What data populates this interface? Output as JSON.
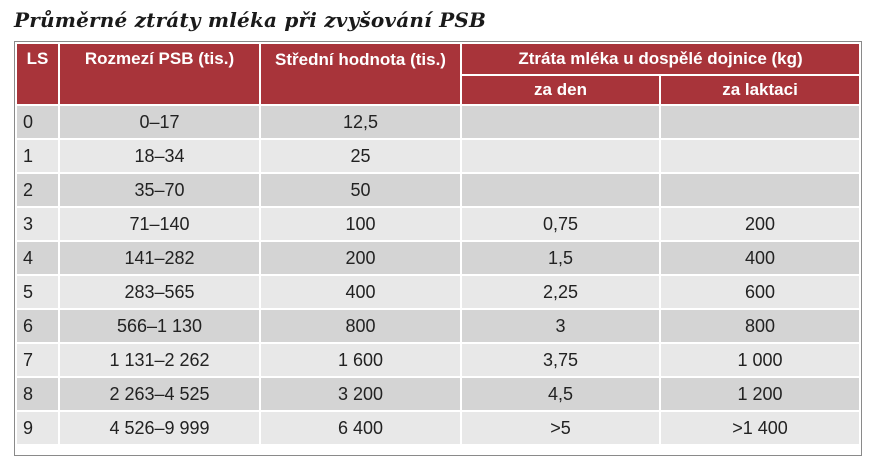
{
  "title": "Průměrné ztráty mléka při zvyšování PSB",
  "headers": {
    "ls": "LS",
    "range": "Rozmezí PSB (tis.)",
    "mean": "Střední hodnota (tis.)",
    "loss": "Ztráta mléka u dospělé dojnice (kg)",
    "per_day": "za den",
    "per_lactation": "za laktaci"
  },
  "rows": [
    {
      "ls": "0",
      "range": "0–17",
      "mean": "12,5",
      "day": "",
      "lactation": ""
    },
    {
      "ls": "1",
      "range": "18–34",
      "mean": "25",
      "day": "",
      "lactation": ""
    },
    {
      "ls": "2",
      "range": "35–70",
      "mean": "50",
      "day": "",
      "lactation": ""
    },
    {
      "ls": "3",
      "range": "71–140",
      "mean": "100",
      "day": "0,75",
      "lactation": "200"
    },
    {
      "ls": "4",
      "range": "141–282",
      "mean": "200",
      "day": "1,5",
      "lactation": "400"
    },
    {
      "ls": "5",
      "range": "283–565",
      "mean": "400",
      "day": "2,25",
      "lactation": "600"
    },
    {
      "ls": "6",
      "range": "566–1 130",
      "mean": "800",
      "day": "3",
      "lactation": "800"
    },
    {
      "ls": "7",
      "range": "1 131–2 262",
      "mean": "1 600",
      "day": "3,75",
      "lactation": "1 000"
    },
    {
      "ls": "8",
      "range": "2 263–4 525",
      "mean": "3 200",
      "day": "4,5",
      "lactation": "1 200"
    },
    {
      "ls": "9",
      "range": "4 526–9 999",
      "mean": "6 400",
      "day": ">5",
      "lactation": ">1 400"
    }
  ],
  "colors": {
    "header_bg": "#a8343a",
    "row_dark": "#d4d4d4",
    "row_light": "#e8e8e8"
  }
}
